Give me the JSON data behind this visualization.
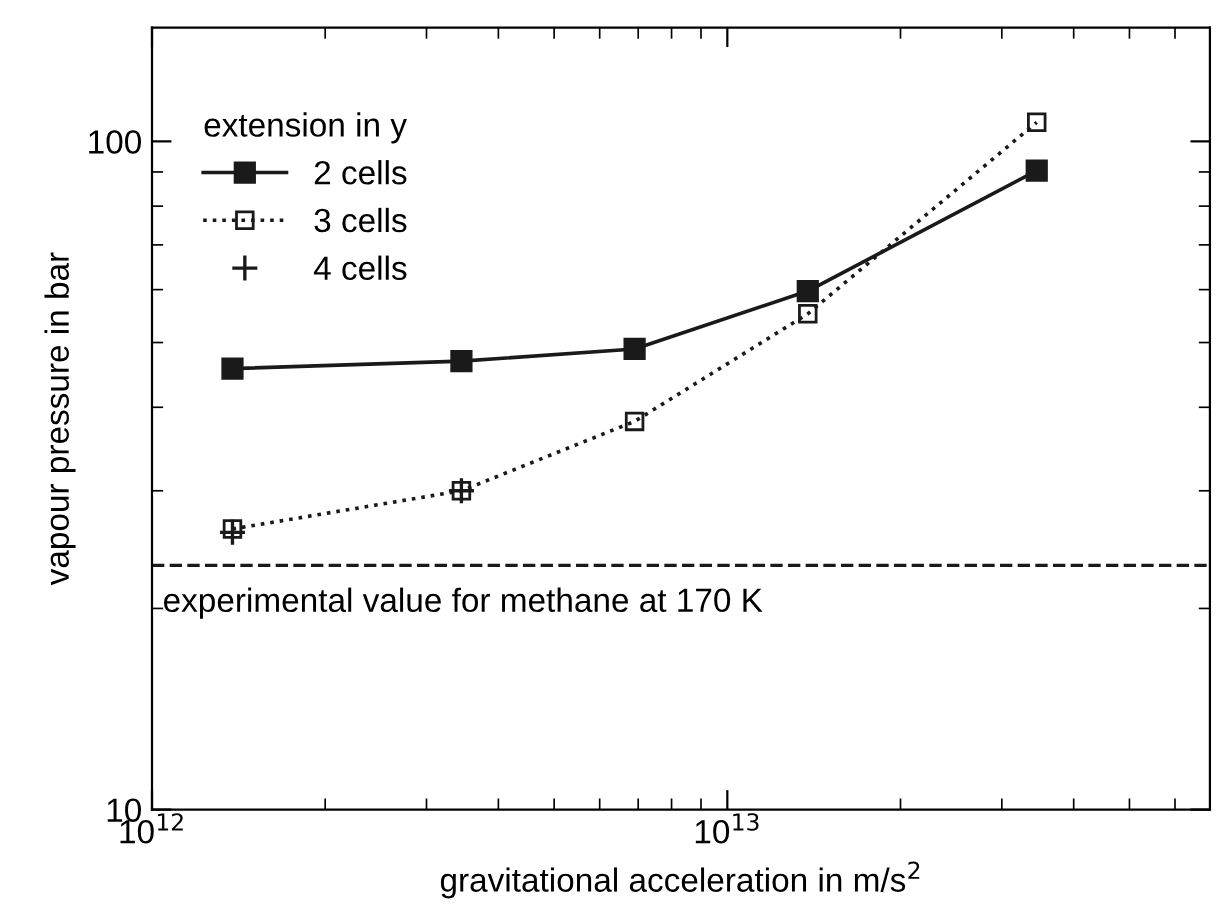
{
  "chart_data": {
    "type": "line",
    "xlabel": "gravitational acceleration in m/s$^{2}$",
    "ylabel": "vapour pressure in bar",
    "legend_title": "extension in y",
    "x": [
      1380000000000.0,
      3450000000000.0,
      6900000000000.0,
      13800000000000.0,
      34500000000000.0
    ],
    "series": [
      {
        "name": "2 cells",
        "color": "#1a1a1a",
        "marker": "square",
        "line_style": "solid",
        "values": [
          45.7,
          46.9,
          48.9,
          59.7,
          90.4
        ]
      },
      {
        "name": "3 cells",
        "color": "#1a1a1a",
        "marker": "square",
        "line_style": "dotted",
        "values": [
          26.3,
          30.0,
          38.1,
          55.2,
          106.8
        ]
      },
      {
        "name": "4 cells",
        "color": "#1a1a1a",
        "type": "scatter",
        "marker": "cross",
        "values": [
          26.0,
          30.0,
          null,
          null,
          null
        ]
      }
    ],
    "log": "xy",
    "xlim": [
      1000000000000.0,
      69000000000000.0
    ],
    "ylim": [
      10,
      148
    ],
    "xticks": [
      {
        "value": 1000000000000.0,
        "label": "10$^{12}$"
      },
      {
        "value": 10000000000000.0,
        "label": "10$^{13}$"
      }
    ],
    "yticks": [
      10,
      100
    ],
    "ref_lines": [
      {
        "axis": "y",
        "value": 23.2,
        "label": "experimental value for methane at 170 K",
        "line_style": "dashed",
        "color": "#1a1a1a"
      }
    ],
    "legend": "top left",
    "grid": false
  }
}
